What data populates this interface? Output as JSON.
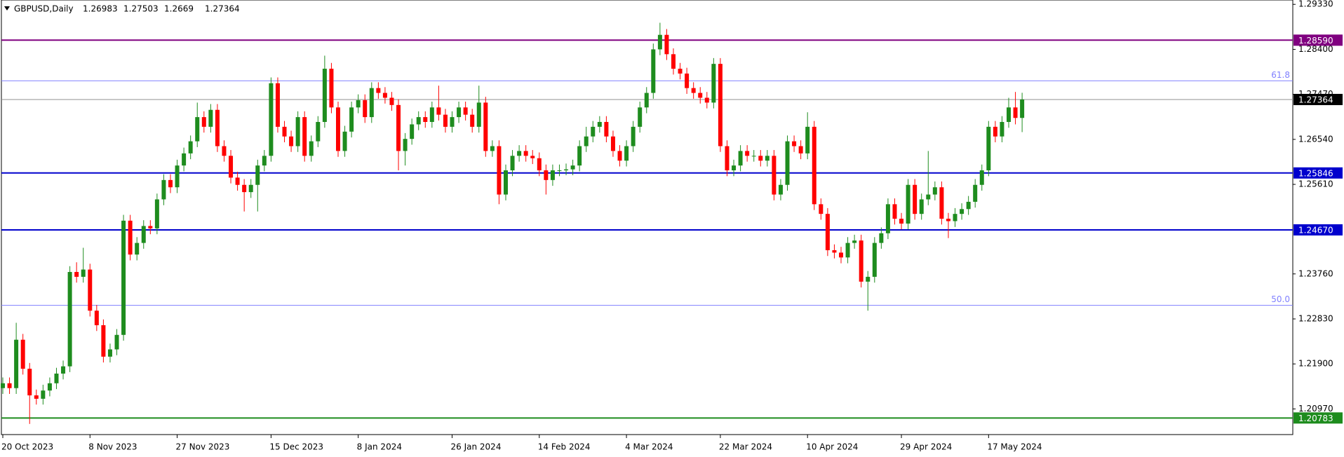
{
  "chart_data": {
    "type": "candlestick",
    "symbol": "GBPUSD,Daily",
    "up_color": "#1e8c1e",
    "down_color": "#ff0000",
    "price_line_color": "#909090",
    "ylim": [
      1.2044,
      1.2942
    ],
    "yticks": [
      {
        "value": 1.2933,
        "label": "1.29330"
      },
      {
        "value": 1.284,
        "label": "1.28400"
      },
      {
        "value": 1.2747,
        "label": "1.27470"
      },
      {
        "value": 1.2654,
        "label": "1.26540"
      },
      {
        "value": 1.2561,
        "label": "1.25610"
      },
      {
        "value": 1.2376,
        "label": "1.23760"
      },
      {
        "value": 1.2283,
        "label": "1.22830"
      },
      {
        "value": 1.219,
        "label": "1.21900"
      },
      {
        "value": 1.2097,
        "label": "1.20970"
      }
    ],
    "levels": [
      {
        "value": 1.2859,
        "label": "1.28590",
        "color": "#800080"
      },
      {
        "value": 1.25846,
        "label": "1.25846",
        "color": "#0000cd"
      },
      {
        "value": 1.2467,
        "label": "1.24670",
        "color": "#0000cd"
      },
      {
        "value": 1.20783,
        "label": "1.20783",
        "color": "#1e8c1e"
      }
    ],
    "fib_levels": [
      {
        "value": 1.2775,
        "label": "61.8",
        "color": "#8080ff"
      },
      {
        "value": 1.2311,
        "label": "50.0",
        "color": "#8080ff"
      }
    ],
    "categories": [
      "20 Oct 2023",
      null,
      null,
      null,
      null,
      null,
      null,
      null,
      null,
      null,
      null,
      null,
      null,
      "8 Nov 2023",
      null,
      null,
      null,
      null,
      null,
      null,
      null,
      null,
      null,
      null,
      null,
      null,
      "27 Nov 2023",
      null,
      null,
      null,
      null,
      null,
      null,
      null,
      null,
      null,
      null,
      null,
      null,
      null,
      "15 Dec 2023",
      null,
      null,
      null,
      null,
      null,
      null,
      null,
      null,
      null,
      null,
      null,
      null,
      "8 Jan 2024",
      null,
      null,
      null,
      null,
      null,
      null,
      null,
      null,
      null,
      null,
      null,
      null,
      null,
      "26 Jan 2024",
      null,
      null,
      null,
      null,
      null,
      null,
      null,
      null,
      null,
      null,
      null,
      null,
      "14 Feb 2024",
      null,
      null,
      null,
      null,
      null,
      null,
      null,
      null,
      null,
      null,
      null,
      null,
      "4 Mar 2024",
      null,
      null,
      null,
      null,
      null,
      null,
      null,
      null,
      null,
      null,
      null,
      null,
      null,
      "22 Mar 2024",
      null,
      null,
      null,
      null,
      null,
      null,
      null,
      null,
      null,
      null,
      null,
      null,
      "10 Apr 2024",
      null,
      null,
      null,
      null,
      null,
      null,
      null,
      null,
      null,
      null,
      null,
      null,
      null,
      "29 Apr 2024",
      null,
      null,
      null,
      null,
      null,
      null,
      null,
      null,
      null,
      null,
      null,
      null,
      "17 May 2024",
      null,
      null,
      null,
      null,
      null
    ],
    "ohlc": [
      [
        1.214,
        1.2162,
        1.2128,
        1.215
      ],
      [
        1.215,
        1.2162,
        1.2128,
        1.214
      ],
      [
        1.214,
        1.2275,
        1.2128,
        1.224
      ],
      [
        1.224,
        1.2252,
        1.2168,
        1.218
      ],
      [
        1.218,
        1.2192,
        1.2066,
        1.2125
      ],
      [
        1.2125,
        1.2137,
        1.2106,
        1.2118
      ],
      [
        1.2118,
        1.2147,
        1.2106,
        1.2135
      ],
      [
        1.2135,
        1.2162,
        1.2123,
        1.215
      ],
      [
        1.215,
        1.2182,
        1.2138,
        1.217
      ],
      [
        1.217,
        1.2197,
        1.2158,
        1.2185
      ],
      [
        1.2185,
        1.2392,
        1.2173,
        1.238
      ],
      [
        1.238,
        1.24,
        1.2358,
        1.237
      ],
      [
        1.237,
        1.243,
        1.2358,
        1.2385
      ],
      [
        1.2385,
        1.2397,
        1.2288,
        1.23
      ],
      [
        1.23,
        1.2312,
        1.2258,
        1.227
      ],
      [
        1.227,
        1.2282,
        1.2193,
        1.2205
      ],
      [
        1.2205,
        1.2232,
        1.2193,
        1.222
      ],
      [
        1.222,
        1.2262,
        1.2208,
        1.225
      ],
      [
        1.225,
        1.2498,
        1.2238,
        1.2486
      ],
      [
        1.2486,
        1.2498,
        1.2404,
        1.2416
      ],
      [
        1.2416,
        1.2452,
        1.2404,
        1.244
      ],
      [
        1.244,
        1.2487,
        1.2428,
        1.2475
      ],
      [
        1.2475,
        1.2487,
        1.2458,
        1.247
      ],
      [
        1.247,
        1.2542,
        1.2458,
        1.253
      ],
      [
        1.253,
        1.2582,
        1.2518,
        1.257
      ],
      [
        1.257,
        1.2582,
        1.2543,
        1.2555
      ],
      [
        1.2555,
        1.2612,
        1.2543,
        1.26
      ],
      [
        1.26,
        1.2637,
        1.2588,
        1.2625
      ],
      [
        1.2625,
        1.2662,
        1.2613,
        1.265
      ],
      [
        1.265,
        1.273,
        1.2638,
        1.27
      ],
      [
        1.27,
        1.2712,
        1.2668,
        1.268
      ],
      [
        1.268,
        1.2727,
        1.2668,
        1.2715
      ],
      [
        1.2715,
        1.2727,
        1.2628,
        1.264
      ],
      [
        1.264,
        1.2652,
        1.2608,
        1.262
      ],
      [
        1.262,
        1.2632,
        1.2563,
        1.2575
      ],
      [
        1.2575,
        1.2587,
        1.2548,
        1.256
      ],
      [
        1.256,
        1.2572,
        1.2505,
        1.2545
      ],
      [
        1.2545,
        1.2572,
        1.2533,
        1.256
      ],
      [
        1.256,
        1.2612,
        1.2505,
        1.26
      ],
      [
        1.26,
        1.2632,
        1.2588,
        1.262
      ],
      [
        1.262,
        1.2782,
        1.2608,
        1.277
      ],
      [
        1.277,
        1.2782,
        1.2668,
        1.268
      ],
      [
        1.268,
        1.2692,
        1.2648,
        1.266
      ],
      [
        1.266,
        1.2672,
        1.2628,
        1.264
      ],
      [
        1.264,
        1.2712,
        1.2628,
        1.27
      ],
      [
        1.27,
        1.2712,
        1.2608,
        1.262
      ],
      [
        1.262,
        1.2662,
        1.2608,
        1.265
      ],
      [
        1.265,
        1.2702,
        1.2638,
        1.269
      ],
      [
        1.269,
        1.2827,
        1.2678,
        1.28
      ],
      [
        1.28,
        1.2812,
        1.2708,
        1.272
      ],
      [
        1.272,
        1.2732,
        1.2618,
        1.263
      ],
      [
        1.263,
        1.2682,
        1.2618,
        1.267
      ],
      [
        1.267,
        1.2732,
        1.2658,
        1.272
      ],
      [
        1.272,
        1.2747,
        1.2708,
        1.2735
      ],
      [
        1.2735,
        1.2747,
        1.2688,
        1.27
      ],
      [
        1.27,
        1.2772,
        1.2688,
        1.276
      ],
      [
        1.276,
        1.2772,
        1.2738,
        1.275
      ],
      [
        1.275,
        1.2762,
        1.2728,
        1.274
      ],
      [
        1.274,
        1.2752,
        1.2713,
        1.2725
      ],
      [
        1.2725,
        1.2737,
        1.259,
        1.263
      ],
      [
        1.263,
        1.2667,
        1.26,
        1.2655
      ],
      [
        1.2655,
        1.2697,
        1.2643,
        1.2685
      ],
      [
        1.2685,
        1.2712,
        1.2673,
        1.27
      ],
      [
        1.27,
        1.2712,
        1.2678,
        1.269
      ],
      [
        1.269,
        1.2732,
        1.2678,
        1.272
      ],
      [
        1.272,
        1.2765,
        1.2693,
        1.2705
      ],
      [
        1.2705,
        1.2717,
        1.2668,
        1.268
      ],
      [
        1.268,
        1.2712,
        1.2668,
        1.27
      ],
      [
        1.27,
        1.2732,
        1.2688,
        1.272
      ],
      [
        1.272,
        1.2732,
        1.2693,
        1.2705
      ],
      [
        1.2705,
        1.2717,
        1.2668,
        1.268
      ],
      [
        1.268,
        1.2765,
        1.2668,
        1.273
      ],
      [
        1.273,
        1.2742,
        1.2618,
        1.263
      ],
      [
        1.263,
        1.2652,
        1.2618,
        1.264
      ],
      [
        1.264,
        1.2652,
        1.252,
        1.254
      ],
      [
        1.254,
        1.2602,
        1.2528,
        1.259
      ],
      [
        1.259,
        1.2632,
        1.2578,
        1.262
      ],
      [
        1.262,
        1.2642,
        1.2608,
        1.263
      ],
      [
        1.263,
        1.2642,
        1.2608,
        1.262
      ],
      [
        1.262,
        1.2632,
        1.2603,
        1.2615
      ],
      [
        1.2615,
        1.2627,
        1.2578,
        1.259
      ],
      [
        1.259,
        1.2602,
        1.254,
        1.257
      ],
      [
        1.257,
        1.2602,
        1.2558,
        1.259
      ],
      [
        1.259,
        1.2602,
        1.2578,
        1.259
      ],
      [
        1.259,
        1.2604,
        1.258,
        1.2592
      ],
      [
        1.2592,
        1.2612,
        1.258,
        1.26
      ],
      [
        1.26,
        1.2652,
        1.2588,
        1.264
      ],
      [
        1.264,
        1.268,
        1.2628,
        1.266
      ],
      [
        1.266,
        1.2692,
        1.2648,
        1.268
      ],
      [
        1.268,
        1.2702,
        1.2668,
        1.269
      ],
      [
        1.269,
        1.2702,
        1.2648,
        1.266
      ],
      [
        1.266,
        1.2672,
        1.2618,
        1.263
      ],
      [
        1.263,
        1.2642,
        1.2598,
        1.261
      ],
      [
        1.261,
        1.2652,
        1.2598,
        1.264
      ],
      [
        1.264,
        1.2692,
        1.2628,
        1.268
      ],
      [
        1.268,
        1.2732,
        1.2668,
        1.272
      ],
      [
        1.272,
        1.2762,
        1.2708,
        1.275
      ],
      [
        1.275,
        1.2852,
        1.2738,
        1.284
      ],
      [
        1.284,
        1.2895,
        1.2828,
        1.287
      ],
      [
        1.287,
        1.2882,
        1.2818,
        1.283
      ],
      [
        1.283,
        1.2842,
        1.2788,
        1.28
      ],
      [
        1.28,
        1.2812,
        1.2778,
        1.279
      ],
      [
        1.279,
        1.2802,
        1.2748,
        1.276
      ],
      [
        1.276,
        1.2772,
        1.2738,
        1.275
      ],
      [
        1.275,
        1.2762,
        1.2728,
        1.274
      ],
      [
        1.274,
        1.2752,
        1.2718,
        1.273
      ],
      [
        1.273,
        1.2822,
        1.2718,
        1.281
      ],
      [
        1.281,
        1.2822,
        1.2628,
        1.264
      ],
      [
        1.264,
        1.2652,
        1.2578,
        1.259
      ],
      [
        1.259,
        1.2612,
        1.2578,
        1.26
      ],
      [
        1.26,
        1.2642,
        1.2588,
        1.263
      ],
      [
        1.263,
        1.2642,
        1.2608,
        1.262
      ],
      [
        1.262,
        1.2632,
        1.2608,
        1.262
      ],
      [
        1.262,
        1.2632,
        1.2598,
        1.261
      ],
      [
        1.261,
        1.2632,
        1.2598,
        1.262
      ],
      [
        1.262,
        1.2632,
        1.2528,
        1.254
      ],
      [
        1.254,
        1.2572,
        1.2528,
        1.256
      ],
      [
        1.256,
        1.2662,
        1.2548,
        1.265
      ],
      [
        1.265,
        1.2662,
        1.2628,
        1.264
      ],
      [
        1.264,
        1.2652,
        1.2613,
        1.2625
      ],
      [
        1.2625,
        1.271,
        1.2613,
        1.268
      ],
      [
        1.268,
        1.2692,
        1.2508,
        1.252
      ],
      [
        1.252,
        1.2532,
        1.2488,
        1.25
      ],
      [
        1.25,
        1.2512,
        1.2413,
        1.2425
      ],
      [
        1.2425,
        1.2437,
        1.2408,
        1.242
      ],
      [
        1.242,
        1.2432,
        1.2398,
        1.241
      ],
      [
        1.241,
        1.2452,
        1.2398,
        1.244
      ],
      [
        1.244,
        1.2457,
        1.2428,
        1.2445
      ],
      [
        1.2445,
        1.2457,
        1.2348,
        1.236
      ],
      [
        1.236,
        1.2382,
        1.23,
        1.237
      ],
      [
        1.237,
        1.2452,
        1.2358,
        1.244
      ],
      [
        1.244,
        1.2472,
        1.2428,
        1.246
      ],
      [
        1.246,
        1.2532,
        1.2448,
        1.252
      ],
      [
        1.252,
        1.2532,
        1.2478,
        1.249
      ],
      [
        1.249,
        1.2502,
        1.2468,
        1.248
      ],
      [
        1.248,
        1.2572,
        1.2468,
        1.256
      ],
      [
        1.256,
        1.2572,
        1.2488,
        1.25
      ],
      [
        1.25,
        1.2542,
        1.2488,
        1.253
      ],
      [
        1.253,
        1.263,
        1.2518,
        1.254
      ],
      [
        1.254,
        1.2567,
        1.2528,
        1.2555
      ],
      [
        1.2555,
        1.2567,
        1.2478,
        1.249
      ],
      [
        1.249,
        1.2502,
        1.245,
        1.2485
      ],
      [
        1.2485,
        1.2512,
        1.2473,
        1.25
      ],
      [
        1.25,
        1.2522,
        1.2488,
        1.251
      ],
      [
        1.251,
        1.2537,
        1.2498,
        1.2525
      ],
      [
        1.2525,
        1.2572,
        1.2513,
        1.256
      ],
      [
        1.256,
        1.2602,
        1.2548,
        1.259
      ],
      [
        1.259,
        1.2692,
        1.2578,
        1.268
      ],
      [
        1.268,
        1.2692,
        1.2648,
        1.266
      ],
      [
        1.266,
        1.2702,
        1.2648,
        1.269
      ],
      [
        1.269,
        1.274,
        1.2678,
        1.272
      ],
      [
        1.272,
        1.2752,
        1.2685,
        1.26983
      ],
      [
        1.26983,
        1.27503,
        1.2669,
        1.27364
      ]
    ]
  }
}
